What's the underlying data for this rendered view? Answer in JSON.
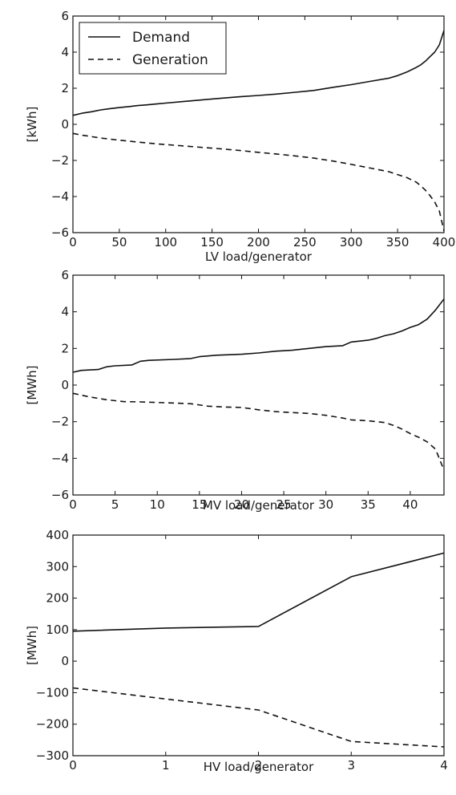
{
  "chart_data": [
    {
      "type": "line",
      "xlabel": "LV load/generator",
      "ylabel": "[kWh]",
      "xlim": [
        0,
        400
      ],
      "ylim": [
        -6,
        6
      ],
      "xticks": [
        "0",
        "50",
        "100",
        "150",
        "200",
        "250",
        "300",
        "350",
        "400"
      ],
      "yticks": [
        "−6",
        "−4",
        "−2",
        "0",
        "2",
        "4",
        "6"
      ],
      "grid": false,
      "legend": {
        "placement": "top-left",
        "entries": [
          "Demand",
          "Generation"
        ]
      },
      "series": [
        {
          "name": "Demand",
          "style": "solid",
          "x": [
            0,
            10,
            20,
            30,
            40,
            50,
            60,
            70,
            80,
            90,
            100,
            120,
            140,
            160,
            180,
            200,
            220,
            240,
            260,
            280,
            300,
            320,
            340,
            350,
            360,
            370,
            375,
            380,
            385,
            390,
            395,
            400
          ],
          "y": [
            0.5,
            0.62,
            0.7,
            0.8,
            0.87,
            0.93,
            0.98,
            1.04,
            1.08,
            1.13,
            1.18,
            1.27,
            1.36,
            1.45,
            1.53,
            1.6,
            1.68,
            1.78,
            1.88,
            2.05,
            2.2,
            2.38,
            2.55,
            2.7,
            2.9,
            3.15,
            3.3,
            3.5,
            3.75,
            4.0,
            4.4,
            5.2
          ]
        },
        {
          "name": "Generation",
          "style": "dashed",
          "x": [
            0,
            10,
            20,
            30,
            40,
            50,
            60,
            70,
            80,
            90,
            100,
            120,
            140,
            160,
            180,
            200,
            220,
            240,
            260,
            280,
            300,
            320,
            340,
            350,
            360,
            370,
            375,
            380,
            385,
            390,
            395,
            400
          ],
          "y": [
            -0.5,
            -0.6,
            -0.68,
            -0.76,
            -0.82,
            -0.88,
            -0.93,
            -0.98,
            -1.03,
            -1.08,
            -1.12,
            -1.2,
            -1.28,
            -1.36,
            -1.45,
            -1.55,
            -1.65,
            -1.75,
            -1.87,
            -2.03,
            -2.22,
            -2.42,
            -2.62,
            -2.78,
            -2.95,
            -3.2,
            -3.4,
            -3.65,
            -3.95,
            -4.3,
            -4.8,
            -5.9
          ]
        }
      ]
    },
    {
      "type": "line",
      "xlabel": "MV load/generator",
      "ylabel": "[MWh]",
      "xlim": [
        0,
        44
      ],
      "ylim": [
        -6,
        6
      ],
      "xticks": [
        "0",
        "5",
        "10",
        "15",
        "20",
        "25",
        "30",
        "35",
        "40"
      ],
      "yticks": [
        "−6",
        "−4",
        "−2",
        "0",
        "2",
        "4",
        "6"
      ],
      "grid": false,
      "series": [
        {
          "name": "Demand",
          "style": "solid",
          "x": [
            0,
            1,
            3,
            4,
            5,
            7,
            8,
            9,
            12,
            14,
            15,
            17,
            20,
            22,
            24,
            26,
            28,
            29,
            30,
            32,
            33,
            35,
            36,
            37,
            38,
            39,
            40,
            41,
            42,
            43,
            44
          ],
          "y": [
            0.7,
            0.8,
            0.85,
            1.0,
            1.05,
            1.1,
            1.3,
            1.35,
            1.4,
            1.45,
            1.55,
            1.63,
            1.68,
            1.75,
            1.85,
            1.9,
            2.0,
            2.05,
            2.1,
            2.15,
            2.35,
            2.45,
            2.55,
            2.7,
            2.8,
            2.95,
            3.15,
            3.3,
            3.6,
            4.1,
            4.7
          ]
        },
        {
          "name": "Generation",
          "style": "dashed",
          "x": [
            0,
            2,
            4,
            6,
            8,
            10,
            12,
            14,
            16,
            18,
            20,
            22,
            24,
            26,
            28,
            30,
            32,
            33,
            35,
            37,
            38,
            39,
            40,
            41,
            42,
            43,
            44
          ],
          "y": [
            -0.45,
            -0.65,
            -0.8,
            -0.9,
            -0.92,
            -0.95,
            -0.98,
            -1.02,
            -1.15,
            -1.2,
            -1.22,
            -1.35,
            -1.45,
            -1.5,
            -1.55,
            -1.65,
            -1.8,
            -1.9,
            -1.95,
            -2.05,
            -2.2,
            -2.4,
            -2.65,
            -2.85,
            -3.1,
            -3.5,
            -4.65
          ]
        }
      ]
    },
    {
      "type": "line",
      "xlabel": "HV load/generator",
      "ylabel": "[MWh]",
      "xlim": [
        0,
        4
      ],
      "ylim": [
        -300,
        400
      ],
      "xticks": [
        "0",
        "1",
        "2",
        "3",
        "4"
      ],
      "yticks": [
        "−300",
        "−200",
        "−100",
        "0",
        "100",
        "200",
        "300",
        "400"
      ],
      "grid": false,
      "series": [
        {
          "name": "Demand",
          "style": "solid",
          "x": [
            0,
            1,
            2,
            3,
            4
          ],
          "y": [
            95,
            105,
            110,
            268,
            343
          ]
        },
        {
          "name": "Generation",
          "style": "dashed",
          "x": [
            0,
            1,
            2,
            3,
            4
          ],
          "y": [
            -85,
            -120,
            -155,
            -255,
            -272
          ]
        }
      ]
    }
  ]
}
